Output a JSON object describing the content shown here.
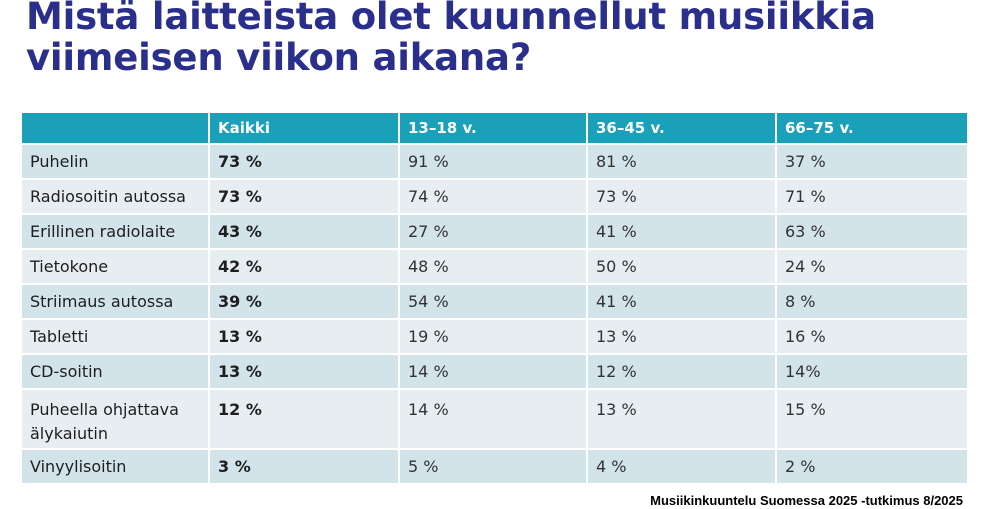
{
  "title_line1": "Mistä laitteista olet kuunnellut musiikkia",
  "title_line2": "viimeisen viikon aikana?",
  "source": "Musiikinkuuntelu Suomessa 2025 -tutkimus 8/2025",
  "colors": {
    "title": "#2b2f8c",
    "header_bg": "#1aa0b8",
    "row_bg_odd": "#d3e3ea",
    "row_bg_even": "#e6eef2"
  },
  "chart_data": {
    "type": "table",
    "title": "Mistä laitteista olet kuunnellut musiikkia viimeisen viikon aikana?",
    "columns": [
      "",
      "Kaikki",
      "13–18 v.",
      "36–45 v.",
      "66–75 v."
    ],
    "rows": [
      {
        "label": "Puhelin",
        "label_lines": [
          "Puhelin"
        ],
        "values": [
          "73 %",
          "91 %",
          "81 %",
          "37 %"
        ]
      },
      {
        "label": "Radiosoitin autossa",
        "label_lines": [
          "Radiosoitin autossa"
        ],
        "values": [
          "73 %",
          "74 %",
          "73 %",
          "71 %"
        ]
      },
      {
        "label": "Erillinen radiolaite",
        "label_lines": [
          "Erillinen radiolaite"
        ],
        "values": [
          "43 %",
          "27 %",
          "41 %",
          "63 %"
        ]
      },
      {
        "label": "Tietokone",
        "label_lines": [
          "Tietokone"
        ],
        "values": [
          "42 %",
          "48 %",
          "50 %",
          "24 %"
        ]
      },
      {
        "label": "Striimaus autossa",
        "label_lines": [
          "Striimaus autossa"
        ],
        "values": [
          "39 %",
          "54 %",
          "41 %",
          "8 %"
        ]
      },
      {
        "label": "Tabletti",
        "label_lines": [
          "Tabletti"
        ],
        "values": [
          "13 %",
          "19 %",
          "13 %",
          "16 %"
        ]
      },
      {
        "label": "CD-soitin",
        "label_lines": [
          "CD-soitin"
        ],
        "values": [
          "13 %",
          "14 %",
          "12 %",
          "14%"
        ]
      },
      {
        "label": "Puheella ohjattava älykaiutin",
        "label_lines": [
          "Puheella ohjattava",
          "älykaiutin"
        ],
        "values": [
          "12 %",
          "14 %",
          "13 %",
          "15 %"
        ]
      },
      {
        "label": "Vinyylisoitin",
        "label_lines": [
          "Vinyylisoitin"
        ],
        "values": [
          "3 %",
          "5 %",
          "4 %",
          "2 %"
        ]
      }
    ]
  }
}
